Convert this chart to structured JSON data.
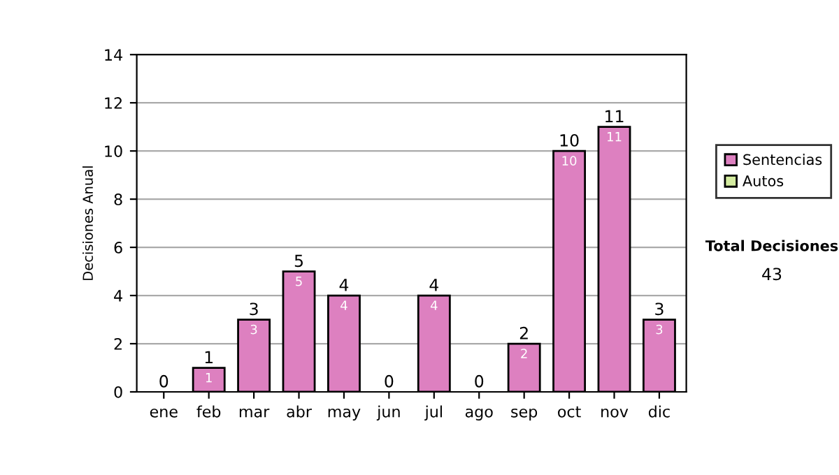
{
  "chart_data": {
    "type": "bar",
    "stacked": true,
    "ylabel": "Decisiones Anual",
    "categories": [
      "ene",
      "feb",
      "mar",
      "abr",
      "may",
      "jun",
      "jul",
      "ago",
      "sep",
      "oct",
      "nov",
      "dic"
    ],
    "series": [
      {
        "name": "Sentencias",
        "color": "#dd80c0",
        "values": [
          0,
          1,
          3,
          5,
          4,
          0,
          4,
          0,
          2,
          10,
          11,
          3
        ],
        "value_labels": [
          null,
          "1",
          "3",
          "5",
          "4",
          null,
          "4",
          null,
          "2",
          "10",
          "11",
          "3"
        ]
      },
      {
        "name": "Autos",
        "color": "#d4eca0",
        "values": [
          0,
          0,
          0,
          0,
          0,
          0,
          0,
          0,
          0,
          0,
          0,
          0
        ]
      }
    ],
    "totals": [
      "0",
      "1",
      "3",
      "5",
      "4",
      "0",
      "4",
      "0",
      "2",
      "10",
      "11",
      "3"
    ],
    "ylim": [
      0,
      14
    ],
    "yticks": [
      0,
      2,
      4,
      6,
      8,
      10,
      12,
      14
    ],
    "grid": "y",
    "legend": "right",
    "annotations": [
      "Total Decisiones",
      "43"
    ]
  }
}
